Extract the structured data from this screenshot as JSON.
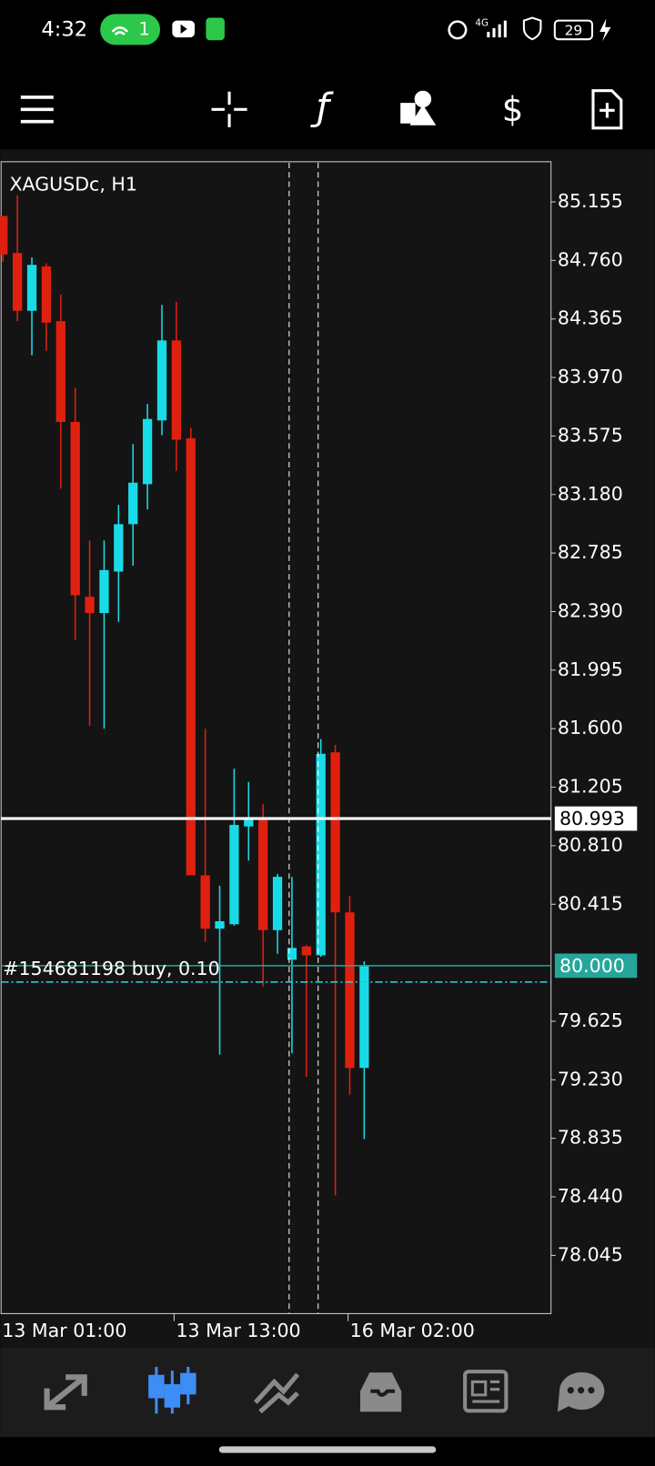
{
  "status_bar": {
    "time": "4:32",
    "hotspot_count": "1",
    "battery": "29"
  },
  "chart": {
    "symbol": "XAGUSDc, H1",
    "up_color": "#19dbe8",
    "down_color": "#e0200f",
    "ylim": [
      77.652,
      85.426
    ],
    "yticks": [
      85.155,
      {
        "value": 84.76,
        "label": "84.760"
      },
      84.365,
      {
        "value": 83.97,
        "label": "83.970"
      },
      83.575,
      {
        "value": 83.18,
        "label": "83.180"
      },
      82.785,
      {
        "value": 82.39,
        "label": "82.390"
      },
      81.995,
      {
        "value": 81.6,
        "label": "81.600"
      },
      81.205,
      {
        "value": 80.81,
        "label": "80.810"
      },
      80.415,
      79.625,
      {
        "value": 79.23,
        "label": "79.230"
      },
      78.835,
      {
        "value": 78.44,
        "label": "78.440"
      },
      78.045
    ],
    "x_labels": [
      "13 Mar 01:00",
      "13 Mar 13:00",
      "16 Mar 02:00"
    ],
    "current_price": 80.993,
    "order": {
      "label": "#154681198 buy, 0.10",
      "price": {
        "value": 80,
        "label": "80.000"
      },
      "entry": 79.89
    },
    "candles": [
      {
        "open": 85.06,
        "high": 85.06,
        "low": 84.75,
        "close": 84.8
      },
      {
        "open": 84.81,
        "high": 85.2,
        "low": 84.35,
        "close": 84.42
      },
      {
        "open": 84.42,
        "high": 84.78,
        "low": 84.12,
        "close": 84.73
      },
      {
        "open": 84.72,
        "high": 84.74,
        "low": 84.15,
        "close": 84.34
      },
      {
        "open": 84.35,
        "high": 84.53,
        "low": 83.22,
        "close": 83.67
      },
      {
        "open": 83.67,
        "high": 83.9,
        "low": 82.2,
        "close": 82.5
      },
      {
        "open": 82.49,
        "high": 82.87,
        "low": 81.62,
        "close": 82.38
      },
      {
        "open": 82.38,
        "high": 82.87,
        "low": 81.6,
        "close": 82.67
      },
      {
        "open": 82.66,
        "high": 83.11,
        "low": 82.32,
        "close": 82.98
      },
      {
        "open": 82.98,
        "high": 83.52,
        "low": 82.7,
        "close": 83.26
      },
      {
        "open": 83.25,
        "high": 83.79,
        "low": 83.08,
        "close": 83.69
      },
      {
        "open": 83.68,
        "high": 84.46,
        "low": 83.58,
        "close": 84.22
      },
      {
        "open": 84.22,
        "high": 84.48,
        "low": 83.34,
        "close": 83.55
      },
      {
        "open": 83.56,
        "high": 83.63,
        "low": 80.61,
        "close": 80.61
      },
      {
        "open": 80.61,
        "high": 81.6,
        "low": 80.16,
        "close": 80.25
      },
      {
        "open": 80.25,
        "high": 80.54,
        "low": 79.4,
        "close": 80.3
      },
      {
        "open": 80.28,
        "high": 81.33,
        "low": 80.27,
        "close": 80.95
      },
      {
        "open": 80.94,
        "high": 81.24,
        "low": 80.71,
        "close": 80.99
      },
      {
        "open": 80.99,
        "high": 81.09,
        "low": 79.86,
        "close": 80.24
      },
      {
        "open": 80.24,
        "high": 80.62,
        "low": 80.08,
        "close": 80.6
      },
      {
        "open": 80.04,
        "high": 80.6,
        "low": 79.41,
        "close": 80.12
      },
      {
        "open": 80.13,
        "high": 80.14,
        "low": 79.25,
        "close": 80.07
      },
      {
        "open": 80.07,
        "high": 81.53,
        "low": 80.06,
        "close": 81.43
      },
      {
        "open": 81.44,
        "high": 81.49,
        "low": 78.45,
        "close": 80.36
      },
      {
        "open": 80.36,
        "high": 80.47,
        "low": 79.13,
        "close": 79.31
      },
      {
        "open": 79.31,
        "high": 80.03,
        "low": 78.83,
        "close": 80.0
      }
    ]
  }
}
